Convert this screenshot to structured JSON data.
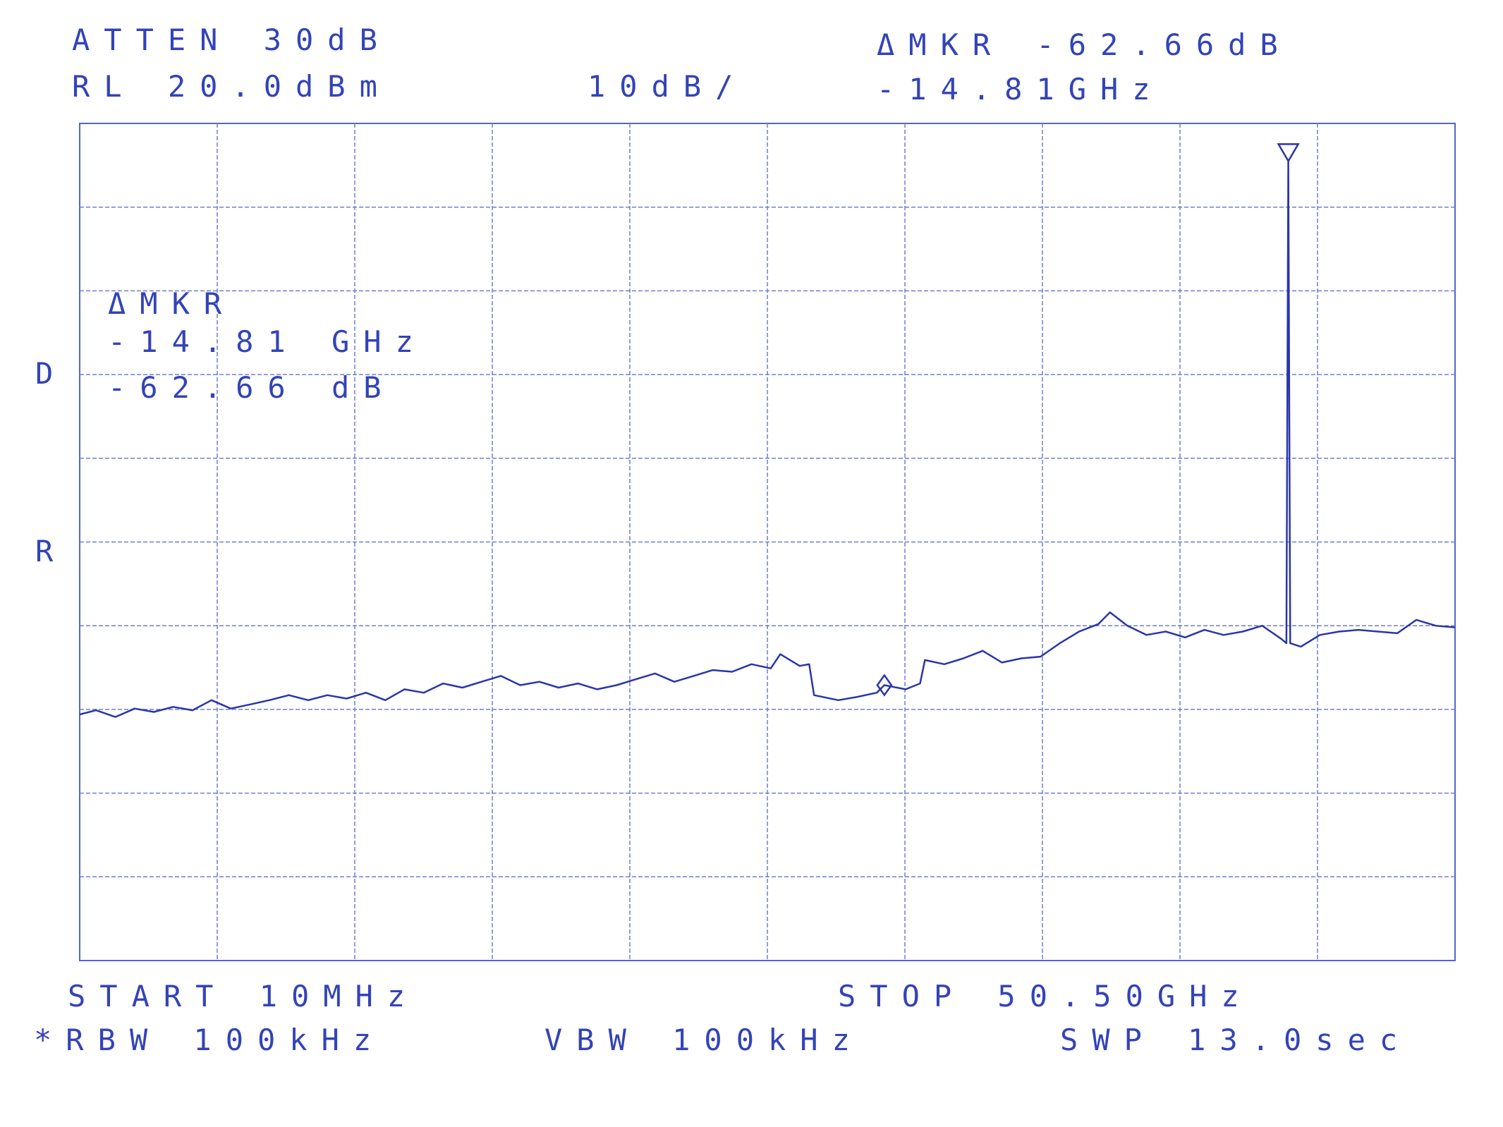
{
  "chart_data": {
    "type": "line",
    "annotations": [
      "ATTEN 30dB",
      "RL 20.0dBm",
      "10dB/",
      "ΔMKR -62.66dB",
      "-14.81GHz",
      "ΔMKR",
      "-14.81 GHz",
      "-62.66 dB",
      "D",
      "R",
      "START 10MHz",
      "STOP 50.50GHz",
      "*RBW 100kHz",
      "VBW 100kHz",
      "SWP 13.0sec"
    ],
    "xlim": [
      0.01,
      50.5
    ],
    "ylim": [
      -80,
      20
    ],
    "color": "#2a36a8",
    "x": [
      0.01,
      0.61,
      1.32,
      2.03,
      2.73,
      3.44,
      4.15,
      4.85,
      5.56,
      6.27,
      6.97,
      7.69,
      8.4,
      9.1,
      9.81,
      10.52,
      11.23,
      11.93,
      12.64,
      13.35,
      14.06,
      14.76,
      15.47,
      16.18,
      16.89,
      17.59,
      18.3,
      19.01,
      19.72,
      20.42,
      21.13,
      21.84,
      22.55,
      23.25,
      23.96,
      24.67,
      25.38,
      25.73,
      26.44,
      26.79,
      26.97,
      27.86,
      28.56,
      29.27,
      29.55,
      30.33,
      30.86,
      31.04,
      31.75,
      32.45,
      33.16,
      33.87,
      34.58,
      35.28,
      35.99,
      36.7,
      37.41,
      37.83,
      38.47,
      39.17,
      39.88,
      40.59,
      41.3,
      42.0,
      42.71,
      43.42,
      44.13,
      44.31,
      44.38,
      44.45,
      44.84,
      45.54,
      46.25,
      46.96,
      47.67,
      48.38,
      49.08,
      49.79,
      50.5
    ],
    "values": [
      -50.6,
      -50.1,
      -50.9,
      -49.9,
      -50.3,
      -49.7,
      -50.1,
      -48.9,
      -49.9,
      -49.4,
      -48.9,
      -48.3,
      -48.9,
      -48.3,
      -48.7,
      -48.0,
      -48.9,
      -47.6,
      -48.0,
      -46.9,
      -47.4,
      -46.7,
      -46.0,
      -47.1,
      -46.7,
      -47.4,
      -46.9,
      -47.6,
      -47.1,
      -46.4,
      -45.7,
      -46.7,
      -46.0,
      -45.3,
      -45.5,
      -44.6,
      -45.1,
      -43.4,
      -44.8,
      -44.6,
      -48.3,
      -48.9,
      -48.5,
      -48.0,
      -47.1,
      -47.6,
      -46.9,
      -44.1,
      -44.6,
      -43.9,
      -43.0,
      -44.4,
      -43.9,
      -43.7,
      -42.1,
      -40.7,
      -39.8,
      -38.4,
      -40.0,
      -41.1,
      -40.7,
      -41.4,
      -40.5,
      -41.1,
      -40.7,
      -40.0,
      -41.6,
      -42.1,
      15.5,
      -42.1,
      -42.5,
      -41.1,
      -40.7,
      -40.5,
      -40.7,
      -40.9,
      -39.3,
      -40.0,
      -40.2
    ],
    "markers": [
      {
        "x": 29.55,
        "y": -47.1
      },
      {
        "x": 44.38,
        "y": 15.5
      }
    ]
  }
}
